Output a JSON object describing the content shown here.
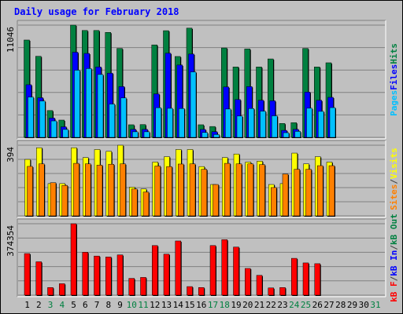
{
  "chart_data": {
    "type": "bar",
    "title": "Daily usage for February 2018",
    "categories": [
      "1",
      "2",
      "3",
      "4",
      "5",
      "6",
      "7",
      "8",
      "9",
      "10",
      "11",
      "12",
      "13",
      "14",
      "15",
      "16",
      "17",
      "18",
      "19",
      "20",
      "21",
      "22",
      "23",
      "24",
      "25",
      "26",
      "27",
      "28",
      "29",
      "30",
      "31"
    ],
    "weekend_days": [
      "3",
      "4",
      "10",
      "11",
      "17",
      "18",
      "24",
      "25",
      "31"
    ],
    "panels": [
      {
        "name": "pages-files-hits",
        "ylabel_parts": [
          "Pages",
          "Files",
          "Hits"
        ],
        "ylabel_colors": [
          "#00c0ff",
          "#0000ff",
          "#008040"
        ],
        "y_tick_label": "11046",
        "ymax": 11046,
        "series": [
          {
            "name": "Hits",
            "color": "#008040",
            "values": [
              9580,
              7980,
              2640,
              1700,
              11046,
              10520,
              10520,
              10330,
              8750,
              1240,
              1260,
              9100,
              10500,
              7960,
              10750,
              1240,
              1070,
              8800,
              6930,
              8700,
              6930,
              7720,
              1370,
              1450,
              8750,
              6930,
              7340,
              0,
              0,
              0,
              0
            ]
          },
          {
            "name": "Files",
            "color": "#0000ff",
            "values": [
              5180,
              3900,
              1900,
              1040,
              8380,
              8260,
              6930,
              6320,
              5000,
              790,
              790,
              4280,
              8280,
              7120,
              8200,
              780,
              560,
              4960,
              3720,
              5000,
              3650,
              3600,
              690,
              790,
              4460,
              3650,
              3940,
              0,
              0,
              0,
              0
            ]
          },
          {
            "name": "Pages",
            "color": "#00c0ff",
            "values": [
              3970,
              3580,
              1620,
              780,
              6610,
              6770,
              6190,
              3280,
              3880,
              550,
              550,
              2920,
              2860,
              2840,
              6440,
              480,
              280,
              2790,
              2100,
              2840,
              2580,
              2120,
              460,
              590,
              2870,
              2560,
              2930,
              0,
              0,
              0,
              0
            ]
          }
        ]
      },
      {
        "name": "visits-sites",
        "ylabel_parts": [
          "Sites",
          "/",
          "Visits"
        ],
        "ylabel_colors": [
          "#ff8000",
          "#404040",
          "#ffff00"
        ],
        "y_tick_label": "394",
        "ymax": 394,
        "series": [
          {
            "name": "Visits",
            "color": "#ffff00",
            "values": [
              315,
              380,
              180,
              180,
              380,
              325,
              370,
              360,
              394,
              160,
              150,
              300,
              330,
              370,
              370,
              275,
              175,
              325,
              345,
              300,
              305,
              175,
              180,
              350,
              290,
              330,
              300,
              0,
              0,
              0,
              0
            ]
          },
          {
            "name": "Sites",
            "color": "#ff8000",
            "values": [
              276,
              290,
              185,
              170,
              293,
              290,
              283,
              288,
              290,
              150,
              133,
              278,
              275,
              289,
              290,
              260,
              175,
              293,
              290,
              290,
              286,
              158,
              233,
              260,
              260,
              280,
              280,
              0,
              0,
              0,
              0
            ]
          }
        ]
      },
      {
        "name": "kbytes",
        "ylabel_parts": [
          "kB F",
          "/",
          "kB In",
          "/",
          "kB Out"
        ],
        "ylabel_colors": [
          "#ff0000",
          "#404040",
          "#0000ff",
          "#404040",
          "#008040"
        ],
        "y_tick_label": "374354",
        "ymax": 374354,
        "series": [
          {
            "name": "kB F",
            "color": "#ff0000",
            "values": [
              218000,
              175000,
              40000,
              60000,
              374354,
              225000,
              205000,
              200000,
              211000,
              88000,
              93000,
              260000,
              215000,
              284000,
              45000,
              40000,
              260000,
              291000,
              252000,
              140000,
              104000,
              38000,
              40000,
              193000,
              169000,
              165000,
              0,
              0,
              0,
              0,
              0
            ]
          }
        ]
      }
    ],
    "kbytes_values_note": ""
  }
}
